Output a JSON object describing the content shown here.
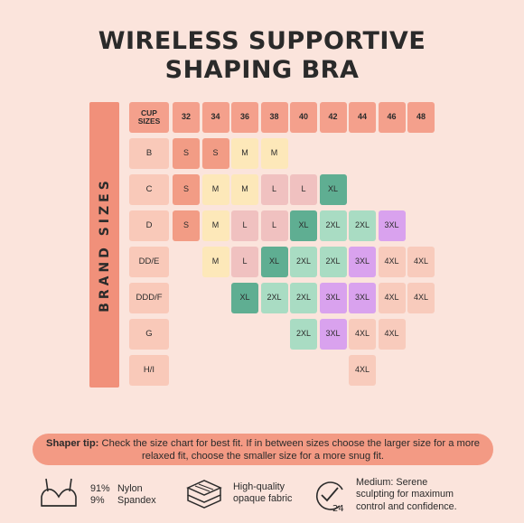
{
  "title": {
    "line1": "WIRELESS SUPPORTIVE",
    "line2": "SHAPING BRA"
  },
  "brand_sizes_label": "BRAND SIZES",
  "cup_sizes_label": "CUP SIZES",
  "band_sizes": [
    "32",
    "34",
    "36",
    "38",
    "40",
    "42",
    "44",
    "46",
    "48"
  ],
  "size_chart": {
    "rows": [
      {
        "cup": "B",
        "cells": [
          {
            "band": "32",
            "size": "S",
            "color": "#f29c85"
          },
          {
            "band": "34",
            "size": "S",
            "color": "#f29c85"
          },
          {
            "band": "36",
            "size": "M",
            "color": "#fde8b9"
          },
          {
            "band": "38",
            "size": "M",
            "color": "#fde8b9"
          }
        ]
      },
      {
        "cup": "C",
        "cells": [
          {
            "band": "32",
            "size": "S",
            "color": "#f29c85"
          },
          {
            "band": "34",
            "size": "M",
            "color": "#fde8b9"
          },
          {
            "band": "36",
            "size": "M",
            "color": "#fde8b9"
          },
          {
            "band": "38",
            "size": "L",
            "color": "#f0c1c0"
          },
          {
            "band": "40",
            "size": "L",
            "color": "#f0c1c0"
          },
          {
            "band": "42",
            "size": "XL",
            "color": "#5fae92"
          }
        ]
      },
      {
        "cup": "D",
        "cells": [
          {
            "band": "32",
            "size": "S",
            "color": "#f29c85"
          },
          {
            "band": "34",
            "size": "M",
            "color": "#fde8b9"
          },
          {
            "band": "36",
            "size": "L",
            "color": "#f0c1c0"
          },
          {
            "band": "38",
            "size": "L",
            "color": "#f0c1c0"
          },
          {
            "band": "40",
            "size": "XL",
            "color": "#5fae92"
          },
          {
            "band": "42",
            "size": "2XL",
            "color": "#a9dcc3"
          },
          {
            "band": "44",
            "size": "2XL",
            "color": "#a9dcc3"
          },
          {
            "band": "46",
            "size": "3XL",
            "color": "#d9a2ee"
          }
        ]
      },
      {
        "cup": "DD/E",
        "cells": [
          {
            "band": "34",
            "size": "M",
            "color": "#fde8b9"
          },
          {
            "band": "36",
            "size": "L",
            "color": "#f0c1c0"
          },
          {
            "band": "38",
            "size": "XL",
            "color": "#5fae92"
          },
          {
            "band": "40",
            "size": "2XL",
            "color": "#a9dcc3"
          },
          {
            "band": "42",
            "size": "2XL",
            "color": "#a9dcc3"
          },
          {
            "band": "44",
            "size": "3XL",
            "color": "#d9a2ee"
          },
          {
            "band": "46",
            "size": "4XL",
            "color": "#f8cbbc"
          },
          {
            "band": "48",
            "size": "4XL",
            "color": "#f8cbbc"
          }
        ]
      },
      {
        "cup": "DDD/F",
        "cells": [
          {
            "band": "36",
            "size": "XL",
            "color": "#5fae92"
          },
          {
            "band": "38",
            "size": "2XL",
            "color": "#a9dcc3"
          },
          {
            "band": "40",
            "size": "2XL",
            "color": "#a9dcc3"
          },
          {
            "band": "42",
            "size": "3XL",
            "color": "#d9a2ee"
          },
          {
            "band": "44",
            "size": "3XL",
            "color": "#d9a2ee"
          },
          {
            "band": "46",
            "size": "4XL",
            "color": "#f8cbbc"
          },
          {
            "band": "48",
            "size": "4XL",
            "color": "#f8cbbc"
          }
        ]
      },
      {
        "cup": "G",
        "cells": [
          {
            "band": "40",
            "size": "2XL",
            "color": "#a9dcc3"
          },
          {
            "band": "42",
            "size": "3XL",
            "color": "#d9a2ee"
          },
          {
            "band": "44",
            "size": "4XL",
            "color": "#f8cbbc"
          },
          {
            "band": "46",
            "size": "4XL",
            "color": "#f8cbbc"
          }
        ]
      },
      {
        "cup": "H/I",
        "cells": [
          {
            "band": "44",
            "size": "4XL",
            "color": "#f8cbbc"
          }
        ]
      }
    ]
  },
  "tip": {
    "label": "Shaper tip:",
    "text": "Check the size chart for best fit. If in between sizes choose the larger size for a more relaxed fit, choose the smaller size for a more snug fit."
  },
  "features": {
    "fabric": {
      "icon": "bra-icon",
      "pct1": "91%",
      "mat1": "Nylon",
      "pct2": "9%",
      "mat2": "Spandex"
    },
    "quality": {
      "icon": "fabric-layers-icon",
      "line1": "High-quality",
      "line2": "opaque fabric"
    },
    "support": {
      "icon": "24-hour-check-icon",
      "line1": "Medium: Serene",
      "line2": "sculpting for maximum",
      "line3": "control and confidence."
    }
  }
}
